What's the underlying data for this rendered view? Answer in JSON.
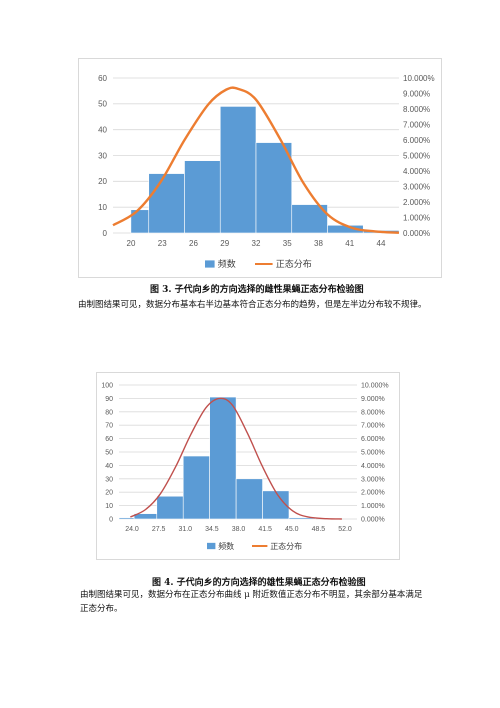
{
  "figures": [
    {
      "caption": "图 3.  子代向乡的方向选择的雌性果蝇正态分布检验图",
      "paragraph": "由制图结果可见，数据分布基本右半边基本符合正态分布的趋势，但是左半边分布较不规律。"
    },
    {
      "caption": "图 4.  子代向乡的方向选择的雄性果蝇正态分布检验图",
      "paragraph": "由制图结果可见，数据分布在正态分布曲线 μ 附近数值正态分布不明显，其余部分基本满足正态分布。"
    }
  ],
  "colors": {
    "bar": "#5b9bd5",
    "curve1": "#ed7d31",
    "curve2": "#c0504d",
    "grid": "#d9d9d9"
  },
  "chart_data": [
    {
      "type": "bar",
      "x_ticks": [
        "20",
        "23",
        "26",
        "29",
        "32",
        "35",
        "38",
        "41",
        "44"
      ],
      "bins": [
        {
          "from": 21.5,
          "to": 23,
          "value": 9
        },
        {
          "from": 23,
          "to": 26,
          "value": 23
        },
        {
          "from": 26,
          "to": 29,
          "value": 28
        },
        {
          "from": 29,
          "to": 32,
          "value": 49
        },
        {
          "from": 32,
          "to": 35,
          "value": 35
        },
        {
          "from": 35,
          "to": 38,
          "value": 11
        },
        {
          "from": 38,
          "to": 41,
          "value": 3
        },
        {
          "from": 41,
          "to": 44,
          "value": 1
        }
      ],
      "y_left_ticks": [
        "0",
        "10",
        "20",
        "30",
        "40",
        "50",
        "60"
      ],
      "ylim_left": [
        0,
        60
      ],
      "y_right_ticks": [
        "0.000%",
        "1.000%",
        "2.000%",
        "3.000%",
        "4.000%",
        "5.000%",
        "6.000%",
        "7.000%",
        "8.000%",
        "9.000%",
        "10.000%"
      ],
      "ylim_right": [
        0,
        10
      ],
      "xlim": [
        20,
        44
      ],
      "curve": [
        {
          "x": 20,
          "y": 0.5
        },
        {
          "x": 22,
          "y": 1.4
        },
        {
          "x": 24,
          "y": 3.3
        },
        {
          "x": 26,
          "y": 6.0
        },
        {
          "x": 28,
          "y": 8.3
        },
        {
          "x": 29.5,
          "y": 9.25
        },
        {
          "x": 30.5,
          "y": 9.3
        },
        {
          "x": 32,
          "y": 8.6
        },
        {
          "x": 34,
          "y": 6.1
        },
        {
          "x": 36,
          "y": 3.2
        },
        {
          "x": 38,
          "y": 1.2
        },
        {
          "x": 40,
          "y": 0.35
        },
        {
          "x": 42,
          "y": 0.1
        },
        {
          "x": 44,
          "y": 0.02
        }
      ],
      "legend": [
        "频数",
        "正态分布"
      ],
      "grid": true,
      "legend_position": "bottom"
    },
    {
      "type": "bar",
      "x_ticks": [
        "24.0",
        "27.5",
        "31.0",
        "34.5",
        "38.0",
        "41.5",
        "45.0",
        "48.5",
        "52.0"
      ],
      "bins": [
        {
          "from": 22.5,
          "to": 24.5,
          "value": 1
        },
        {
          "from": 24.5,
          "to": 27.5,
          "value": 4
        },
        {
          "from": 27.5,
          "to": 31,
          "value": 17
        },
        {
          "from": 31,
          "to": 34.5,
          "value": 47
        },
        {
          "from": 34.5,
          "to": 38,
          "value": 91
        },
        {
          "from": 38,
          "to": 41.5,
          "value": 30
        },
        {
          "from": 41.5,
          "to": 45,
          "value": 21
        },
        {
          "from": 45,
          "to": 48.5,
          "value": 1
        }
      ],
      "y_left_ticks": [
        "0",
        "10",
        "20",
        "30",
        "40",
        "50",
        "60",
        "70",
        "80",
        "90",
        "100"
      ],
      "ylim_left": [
        0,
        100
      ],
      "y_right_ticks": [
        "0.000%",
        "1.000%",
        "2.000%",
        "3.000%",
        "4.000%",
        "5.000%",
        "6.000%",
        "7.000%",
        "8.000%",
        "9.000%",
        "10.000%"
      ],
      "ylim_right": [
        0,
        10
      ],
      "xlim": [
        22.5,
        54
      ],
      "curve": [
        {
          "x": 24,
          "y": 0.15
        },
        {
          "x": 26,
          "y": 0.7
        },
        {
          "x": 28,
          "y": 1.9
        },
        {
          "x": 30,
          "y": 3.9
        },
        {
          "x": 32,
          "y": 6.3
        },
        {
          "x": 34,
          "y": 8.3
        },
        {
          "x": 35.8,
          "y": 9.0
        },
        {
          "x": 37.5,
          "y": 8.5
        },
        {
          "x": 39.5,
          "y": 6.4
        },
        {
          "x": 41.5,
          "y": 3.9
        },
        {
          "x": 43.5,
          "y": 1.8
        },
        {
          "x": 45.5,
          "y": 0.6
        },
        {
          "x": 47.5,
          "y": 0.15
        },
        {
          "x": 50,
          "y": 0.02
        },
        {
          "x": 52,
          "y": 0.0
        }
      ],
      "legend": [
        "频数",
        "正态分布"
      ],
      "grid": true,
      "legend_position": "bottom"
    }
  ]
}
